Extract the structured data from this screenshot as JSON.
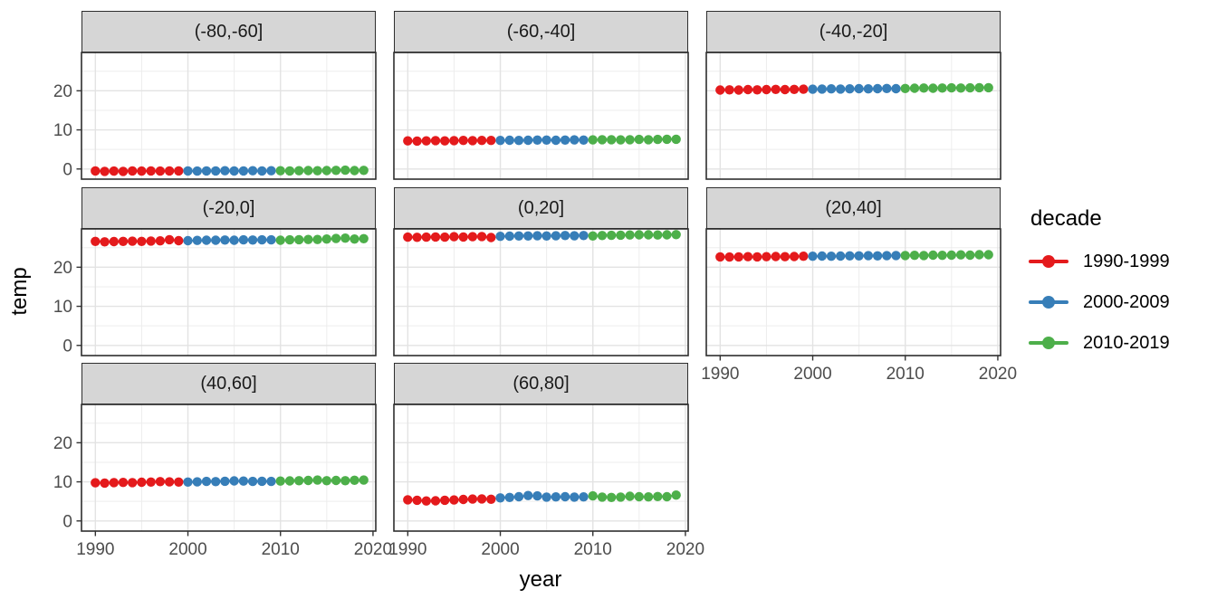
{
  "chart_data": {
    "type": "scatter",
    "title": "",
    "xlabel": "year",
    "ylabel": "temp",
    "facet_variable": "latitude band",
    "grid": "on",
    "x_ticks": [
      1990,
      2000,
      2010,
      2020
    ],
    "x_minor_ticks": [
      1995,
      2005,
      2015
    ],
    "y_ticks": [
      0,
      10,
      20
    ],
    "y_minor_ticks": [
      5,
      15,
      25
    ],
    "xlim": [
      1988.5,
      2020.3
    ],
    "ylim": [
      -2.6,
      29.8
    ],
    "years": [
      1990,
      1991,
      1992,
      1993,
      1994,
      1995,
      1996,
      1997,
      1998,
      1999,
      2000,
      2001,
      2002,
      2003,
      2004,
      2005,
      2006,
      2007,
      2008,
      2009,
      2010,
      2011,
      2012,
      2013,
      2014,
      2015,
      2016,
      2017,
      2018,
      2019
    ],
    "decades": [
      {
        "name": "1990-1999",
        "from": 1990,
        "to": 1999,
        "color": "#E41A1C"
      },
      {
        "name": "2000-2009",
        "from": 2000,
        "to": 2009,
        "color": "#377EB8"
      },
      {
        "name": "2010-2019",
        "from": 2010,
        "to": 2019,
        "color": "#4DAF4A"
      }
    ],
    "legend": {
      "title": "decade",
      "position": "right",
      "entries": [
        {
          "label": "1990-1999",
          "color": "#E41A1C"
        },
        {
          "label": "2000-2009",
          "color": "#377EB8"
        },
        {
          "label": "2010-2019",
          "color": "#4DAF4A"
        }
      ]
    },
    "facets": [
      {
        "label": "(-80,-60]",
        "row": 0,
        "col": 0,
        "values": [
          -0.5,
          -0.6,
          -0.55,
          -0.6,
          -0.5,
          -0.55,
          -0.5,
          -0.55,
          -0.5,
          -0.5,
          -0.5,
          -0.55,
          -0.5,
          -0.5,
          -0.45,
          -0.5,
          -0.5,
          -0.45,
          -0.5,
          -0.45,
          -0.45,
          -0.5,
          -0.45,
          -0.4,
          -0.45,
          -0.4,
          -0.35,
          -0.3,
          -0.4,
          -0.35
        ]
      },
      {
        "label": "(-60,-40]",
        "row": 0,
        "col": 1,
        "values": [
          7.2,
          7.15,
          7.2,
          7.25,
          7.2,
          7.25,
          7.3,
          7.25,
          7.3,
          7.3,
          7.3,
          7.35,
          7.3,
          7.35,
          7.4,
          7.4,
          7.35,
          7.4,
          7.45,
          7.4,
          7.45,
          7.5,
          7.5,
          7.45,
          7.5,
          7.55,
          7.5,
          7.55,
          7.6,
          7.6
        ]
      },
      {
        "label": "(-40,-20]",
        "row": 0,
        "col": 2,
        "values": [
          20.2,
          20.25,
          20.2,
          20.3,
          20.25,
          20.3,
          20.35,
          20.3,
          20.35,
          20.4,
          20.4,
          20.45,
          20.5,
          20.45,
          20.5,
          20.55,
          20.5,
          20.55,
          20.6,
          20.55,
          20.6,
          20.65,
          20.7,
          20.65,
          20.7,
          20.75,
          20.7,
          20.75,
          20.8,
          20.8
        ]
      },
      {
        "label": "(-20,0]",
        "row": 1,
        "col": 0,
        "values": [
          26.6,
          26.5,
          26.55,
          26.6,
          26.65,
          26.6,
          26.7,
          26.75,
          27.05,
          26.8,
          26.8,
          26.85,
          26.9,
          26.9,
          26.95,
          26.9,
          27.0,
          26.95,
          27.0,
          27.0,
          26.9,
          27.0,
          27.05,
          27.1,
          27.1,
          27.2,
          27.35,
          27.45,
          27.2,
          27.3
        ]
      },
      {
        "label": "(0,20]",
        "row": 1,
        "col": 1,
        "values": [
          27.7,
          27.65,
          27.7,
          27.75,
          27.7,
          27.8,
          27.75,
          27.8,
          27.85,
          27.6,
          27.9,
          27.95,
          28.0,
          28.0,
          28.05,
          28.0,
          28.05,
          28.1,
          28.05,
          28.1,
          28.0,
          28.1,
          28.15,
          28.2,
          28.25,
          28.3,
          28.3,
          28.25,
          28.3,
          28.35
        ]
      },
      {
        "label": "(20,40]",
        "row": 1,
        "col": 2,
        "values": [
          22.65,
          22.6,
          22.65,
          22.7,
          22.65,
          22.7,
          22.75,
          22.7,
          22.75,
          22.8,
          22.8,
          22.85,
          22.8,
          22.85,
          22.9,
          22.9,
          22.95,
          22.9,
          22.95,
          23.0,
          23.0,
          23.05,
          23.0,
          23.1,
          23.05,
          23.1,
          23.15,
          23.1,
          23.2,
          23.2
        ]
      },
      {
        "label": "(40,60]",
        "row": 2,
        "col": 0,
        "values": [
          9.75,
          9.7,
          9.8,
          9.85,
          9.8,
          9.9,
          9.95,
          10.05,
          10.0,
          9.95,
          9.95,
          10.0,
          10.1,
          10.05,
          10.15,
          10.25,
          10.2,
          10.1,
          10.15,
          10.1,
          10.2,
          10.25,
          10.3,
          10.35,
          10.45,
          10.3,
          10.35,
          10.3,
          10.4,
          10.45
        ]
      },
      {
        "label": "(60,80]",
        "row": 2,
        "col": 1,
        "values": [
          5.4,
          5.3,
          5.1,
          5.15,
          5.3,
          5.35,
          5.5,
          5.6,
          5.65,
          5.55,
          5.9,
          6.0,
          6.2,
          6.5,
          6.4,
          6.1,
          6.15,
          6.2,
          6.1,
          6.15,
          6.4,
          6.1,
          6.0,
          6.1,
          6.3,
          6.2,
          6.15,
          6.25,
          6.2,
          6.6
        ]
      }
    ],
    "style": {
      "strip_fill": "#D6D6D6",
      "panel_border": "#2E2E2E",
      "grid_major": "#E3E3E3",
      "grid_minor": "#EDEDED",
      "tick_label_color": "#4D4D4D"
    }
  }
}
